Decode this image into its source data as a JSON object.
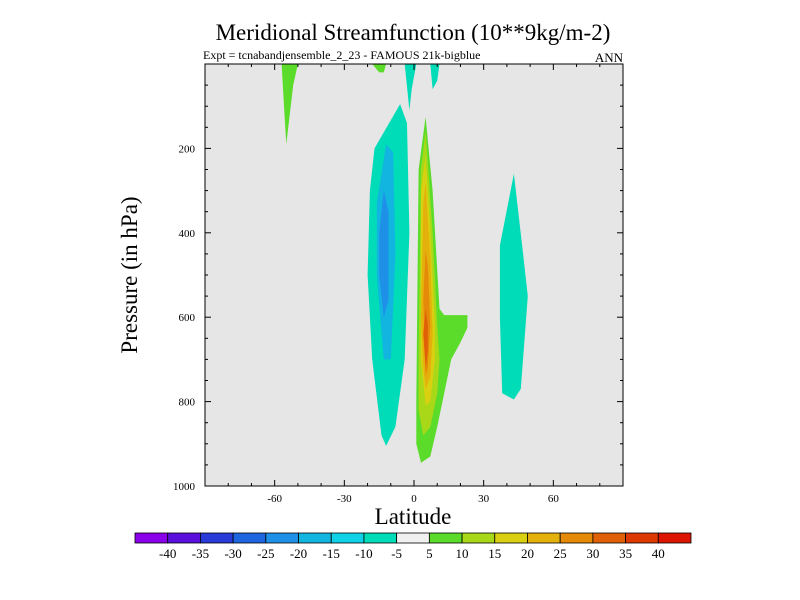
{
  "chart_data": {
    "type": "contour",
    "title": "Meridional Streamfunction (10**9kg/m-2)",
    "subtitle_left": "Expt = tcnabandjensemble_2_23 - FAMOUS 21k-bigblue",
    "subtitle_right": "ANN",
    "xlabel": "Latitude",
    "ylabel": "Pressure (in hPa)",
    "xlim": [
      -90,
      90
    ],
    "ylim": [
      1000,
      0
    ],
    "x_ticks": [
      -60,
      -30,
      0,
      30,
      60
    ],
    "y_ticks": [
      200,
      400,
      600,
      800,
      1000
    ],
    "background_color": "#e6e6e6",
    "colorbar": {
      "labels": [
        "-40",
        "-35",
        "-30",
        "-25",
        "-20",
        "-15",
        "-10",
        "-5",
        "5",
        "10",
        "15",
        "20",
        "25",
        "30",
        "35",
        "40"
      ],
      "colors": [
        "#8a00e8",
        "#5a10dc",
        "#2a3ad8",
        "#1e66e0",
        "#1e90e8",
        "#12b4e0",
        "#10d2e6",
        "#00dcb8",
        "#f0f0f0",
        "#5cdc2a",
        "#a8d818",
        "#d8d010",
        "#e4b00c",
        "#e48a08",
        "#e06008",
        "#dc3800",
        "#dc1400"
      ]
    },
    "regions": [
      {
        "name": "nh-upper-positive-tongue",
        "fill": "#5cdc2a",
        "points": [
          [
            -57,
            0
          ],
          [
            -50,
            0
          ],
          [
            -52,
            50
          ],
          [
            -55,
            190
          ],
          [
            -56,
            100
          ]
        ]
      },
      {
        "name": "small-positive-cell-top",
        "fill": "#5cdc2a",
        "points": [
          [
            -18,
            0
          ],
          [
            -12,
            0
          ],
          [
            -13,
            20
          ],
          [
            -15,
            20
          ]
        ]
      },
      {
        "name": "upper-negative-strip",
        "fill": "#00dcb8",
        "points": [
          [
            -4,
            0
          ],
          [
            1,
            0
          ],
          [
            -1,
            60
          ],
          [
            -2,
            110
          ]
        ]
      },
      {
        "name": "upper-right-negative-strip",
        "fill": "#00dcb8",
        "points": [
          [
            7,
            0
          ],
          [
            11,
            0
          ],
          [
            10,
            40
          ],
          [
            8,
            60
          ]
        ]
      },
      {
        "name": "southern-negative-cell-outer",
        "fill": "#00dcb8",
        "points": [
          [
            -17,
            200
          ],
          [
            -6,
            95
          ],
          [
            -3,
            140
          ],
          [
            -2,
            400
          ],
          [
            -4,
            700
          ],
          [
            -8,
            860
          ],
          [
            -12,
            905
          ],
          [
            -14,
            880
          ],
          [
            -18,
            700
          ],
          [
            -20,
            500
          ],
          [
            -19,
            300
          ]
        ]
      },
      {
        "name": "southern-negative-cell-mid",
        "fill": "#12b4e0",
        "points": [
          [
            -16,
            330
          ],
          [
            -12,
            190
          ],
          [
            -9,
            210
          ],
          [
            -8,
            450
          ],
          [
            -10,
            700
          ],
          [
            -13,
            700
          ],
          [
            -16,
            500
          ]
        ]
      },
      {
        "name": "southern-negative-cell-core",
        "fill": "#1e90e8",
        "points": [
          [
            -15,
            400
          ],
          [
            -13,
            300
          ],
          [
            -11,
            350
          ],
          [
            -11,
            560
          ],
          [
            -13,
            600
          ],
          [
            -15,
            500
          ]
        ]
      },
      {
        "name": "northern-negative-cell",
        "fill": "#00dcb8",
        "points": [
          [
            37,
            430
          ],
          [
            43,
            260
          ],
          [
            47,
            450
          ],
          [
            49,
            550
          ],
          [
            46,
            770
          ],
          [
            43,
            795
          ],
          [
            38,
            780
          ],
          [
            37,
            600
          ]
        ]
      },
      {
        "name": "hadley-positive-cell-outer",
        "fill": "#5cdc2a",
        "points": [
          [
            1,
            800
          ],
          [
            2,
            250
          ],
          [
            5,
            125
          ],
          [
            8,
            300
          ],
          [
            11,
            580
          ],
          [
            13,
            595
          ],
          [
            23,
            595
          ],
          [
            23,
            625
          ],
          [
            20,
            660
          ],
          [
            16,
            700
          ],
          [
            13,
            780
          ],
          [
            10,
            860
          ],
          [
            7,
            930
          ],
          [
            3,
            945
          ],
          [
            1,
            900
          ]
        ]
      },
      {
        "name": "hadley-positive-cell-15",
        "fill": "#a8d818",
        "points": [
          [
            2,
            700
          ],
          [
            3,
            250
          ],
          [
            5,
            160
          ],
          [
            8,
            400
          ],
          [
            10,
            620
          ],
          [
            11,
            700
          ],
          [
            10,
            780
          ],
          [
            7,
            860
          ],
          [
            4,
            880
          ],
          [
            2,
            820
          ]
        ]
      },
      {
        "name": "hadley-positive-cell-20",
        "fill": "#d8d010",
        "points": [
          [
            3,
            700
          ],
          [
            3,
            300
          ],
          [
            5,
            220
          ],
          [
            7,
            400
          ],
          [
            9,
            620
          ],
          [
            9,
            700
          ],
          [
            7,
            800
          ],
          [
            5,
            810
          ]
        ]
      },
      {
        "name": "hadley-positive-cell-25",
        "fill": "#e4b00c",
        "points": [
          [
            3,
            600
          ],
          [
            4,
            330
          ],
          [
            5,
            280
          ],
          [
            7,
            460
          ],
          [
            8,
            640
          ],
          [
            7,
            740
          ],
          [
            5,
            770
          ],
          [
            4,
            720
          ]
        ]
      },
      {
        "name": "hadley-positive-cell-30",
        "fill": "#e48a08",
        "points": [
          [
            4,
            560
          ],
          [
            5,
            440
          ],
          [
            6,
            480
          ],
          [
            7,
            620
          ],
          [
            6,
            720
          ],
          [
            5,
            740
          ]
        ]
      },
      {
        "name": "hadley-positive-cell-35",
        "fill": "#e06008",
        "points": [
          [
            4,
            640
          ],
          [
            5,
            580
          ],
          [
            6,
            620
          ],
          [
            6,
            680
          ],
          [
            5,
            720
          ]
        ]
      }
    ]
  }
}
